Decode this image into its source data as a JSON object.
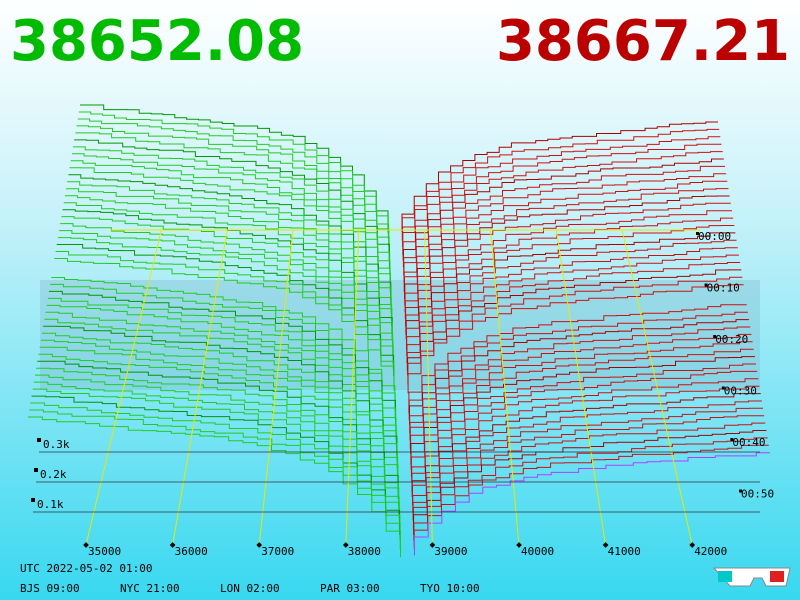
{
  "header": {
    "bid": "38652.08",
    "ask": "38667.21"
  },
  "price_axis": [
    35000,
    36000,
    37000,
    38000,
    39000,
    40000,
    41000,
    42000
  ],
  "depth_axis": [
    {
      "value": 300,
      "label": "0.3k"
    },
    {
      "value": 200,
      "label": "0.2k"
    },
    {
      "value": 100,
      "label": "0.1k"
    }
  ],
  "time_axis": [
    "00:00",
    "00:10",
    "00:20",
    "00:30",
    "00:40",
    "00:50"
  ],
  "footer": {
    "utc": "UTC 2022-05-02 01:00",
    "zones": [
      "BJS 09:00",
      "NYC 21:00",
      "LON 02:00",
      "PAR 03:00",
      "TYO 10:00"
    ]
  }
}
